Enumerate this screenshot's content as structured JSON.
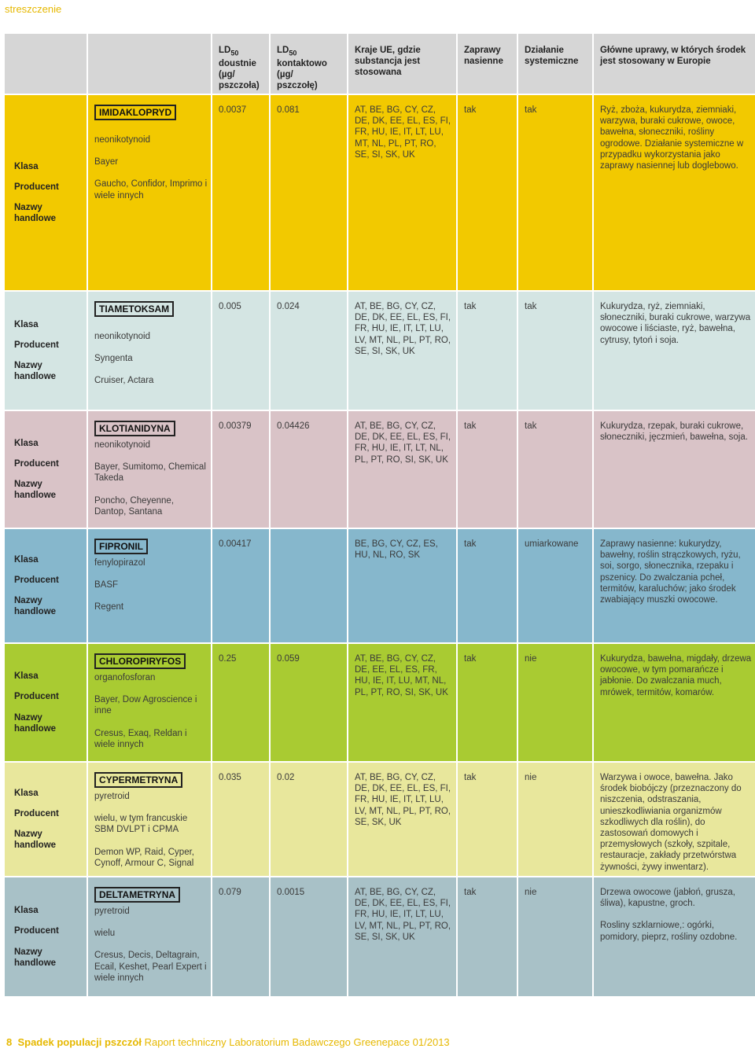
{
  "section": "streszczenie",
  "header": {
    "col1": "",
    "col2": "",
    "ld_oral": [
      "LD",
      "50",
      "doustnie",
      "(µg/",
      "pszczoła)"
    ],
    "ld_contact": [
      "LD",
      "50",
      "kontaktowo",
      "(µg/",
      "pszczołę)"
    ],
    "countries": "Kraje UE, gdzie substancja jest stosowana",
    "seed": "Zaprawy nasienne",
    "systemic": "Działanie systemiczne",
    "crops": "Główne uprawy, w których środek jest stosowany w Europie"
  },
  "labels": {
    "klasa": "Klasa",
    "producent": "Producent",
    "nazwy": "Nazwy handlowe"
  },
  "rows": [
    {
      "color": "#f2c900",
      "name": "IMIDAKLOPRYD",
      "klasa": "neonikotynoid",
      "producent": "Bayer",
      "nazwy": "Gaucho, Confidor, Imprimo i wiele innych",
      "ld_oral": "0.0037",
      "ld_contact": "0.081",
      "countries": "AT, BE, BG, CY, CZ, DE, DK, EE, EL, ES, FI, FR, HU, IE, IT, LT, LU, MT, NL, PL, PT, RO, SE, SI, SK, UK",
      "seed": "tak",
      "systemic": "tak",
      "crops": "Ryż, zboża, kukurydza, ziemniaki, warzywa, buraki cukrowe, owoce, bawełna, słoneczniki, rośliny ogrodowe. Działanie systemiczne w przypadku wykorzystania jako zaprawy nasiennej lub doglebowo."
    },
    {
      "color": "#d4e5e3",
      "name": "TIAMETOKSAM",
      "klasa": "neonikotynoid",
      "producent": "Syngenta",
      "nazwy": "Cruiser, Actara",
      "ld_oral": "0.005",
      "ld_contact": "0.024",
      "countries": "AT, BE, BG, CY, CZ, DE, DK, EE, EL, ES, FI, FR, HU, IE, IT, LT, LU, LV, MT, NL, PL, PT, RO, SE, SI, SK, UK",
      "seed": "tak",
      "systemic": "tak",
      "crops": "Kukurydza, ryż, ziemniaki, słoneczniki, buraki cukrowe, warzywa owocowe i liściaste, ryż, bawełna, cytrusy, tytoń i soja."
    },
    {
      "color": "#d9c3c7",
      "name": "KLOTIANIDYNA",
      "klasa": "neonikotynoid",
      "producent": "Bayer, Sumitomo, Chemical Takeda",
      "nazwy": "Poncho, Cheyenne, Dantop, Santana",
      "ld_oral": "0.00379",
      "ld_contact": "0.04426",
      "countries": "AT, BE, BG, CY, CZ, DE, DK, EE, EL, ES, FI, FR, HU, IE, IT, LT, NL, PL, PT, RO, SI, SK, UK",
      "seed": "tak",
      "systemic": "tak",
      "crops": "Kukurydza, rzepak, buraki cukrowe, słoneczniki, jęczmień, bawełna, soja."
    },
    {
      "color": "#86b7cc",
      "name": "FIPRONIL",
      "klasa": "fenylopirazol",
      "producent": "BASF",
      "nazwy": "Regent",
      "ld_oral": "0.00417",
      "ld_contact": "",
      "countries": "BE, BG, CY, CZ, ES, HU, NL, RO, SK",
      "seed": "tak",
      "systemic": "umiarkowane",
      "crops": "Zaprawy nasienne: kukurydzy, bawełny, roślin strączkowych, ryżu, soi, sorgo, słonecznika, rzepaku i pszenicy. Do zwalczania pcheł, termitów, karaluchów; jako środek zwabiający muszki owocowe."
    },
    {
      "color": "#a9cb32",
      "name": "CHLOROPIRYFOS",
      "klasa": "organofosforan",
      "producent": "Bayer, Dow Agroscience i inne",
      "nazwy": "Cresus, Exaq, Reldan i wiele innych",
      "ld_oral": "0.25",
      "ld_contact": "0.059",
      "countries": "AT, BE, BG, CY, CZ, DE, EE, EL, ES, FR, HU, IE, IT, LU, MT, NL, PL, PT, RO, SI, SK, UK",
      "seed": "tak",
      "systemic": "nie",
      "crops": "Kukurydza, bawełna, migdały, drzewa owocowe, w tym pomarańcze i jabłonie. Do zwalczania much, mrówek, termitów, komarów."
    },
    {
      "color": "#e8e79c",
      "name": "CYPERMETRYNA",
      "klasa": "pyretroid",
      "producent": "wielu, w tym francuskie SBM DVLPT i CPMA",
      "nazwy": "Demon WP, Raid, Cyper, Cynoff, Armour C, Signal",
      "ld_oral": "0.035",
      "ld_contact": "0.02",
      "countries": "AT, BE, BG, CY, CZ, DE, DK, EE, EL, ES, FI, FR, HU, IE, IT, LT, LU, LV, MT, NL, PL, PT, RO, SE, SK, UK",
      "seed": "tak",
      "systemic": "nie",
      "crops": "Warzywa i owoce, bawełna. Jako środek biobójczy (przeznaczony do niszczenia, odstraszania, unieszkodliwiania organizmów szkodliwych dla roślin), do zastosowań domowych i przemysłowych (szkoły, szpitale, restauracje, zakłady przetwórstwa żywności, żywy inwentarz)."
    },
    {
      "color": "#a8c1c7",
      "name": "DELTAMETRYNA",
      "klasa": "pyretroid",
      "producent": "wielu",
      "nazwy": "Cresus, Decis, Deltagrain, Ecail, Keshet, Pearl Expert i wiele innych",
      "ld_oral": "0.079",
      "ld_contact": "0.0015",
      "countries": "AT, BE, BG, CY, CZ, DE, DK, EE, EL, ES, FI, FR, HU, IE, IT, LT, LU, LV, MT, NL, PL, PT, RO, SE, SI, SK, UK",
      "seed": "tak",
      "systemic": "nie",
      "crops": "Drzewa owocowe (jabłoń, grusza, śliwa), kapustne, groch.",
      "crops2": "Rosliny szklarniowe,: ogórki, pomidory, pieprz, rośliny ozdobne."
    }
  ],
  "footer": {
    "page": "8",
    "title": "Spadek populacji pszczół",
    "subtitle": "Raport techniczny Laboratorium Badawczego Greenepace 01/2013"
  }
}
